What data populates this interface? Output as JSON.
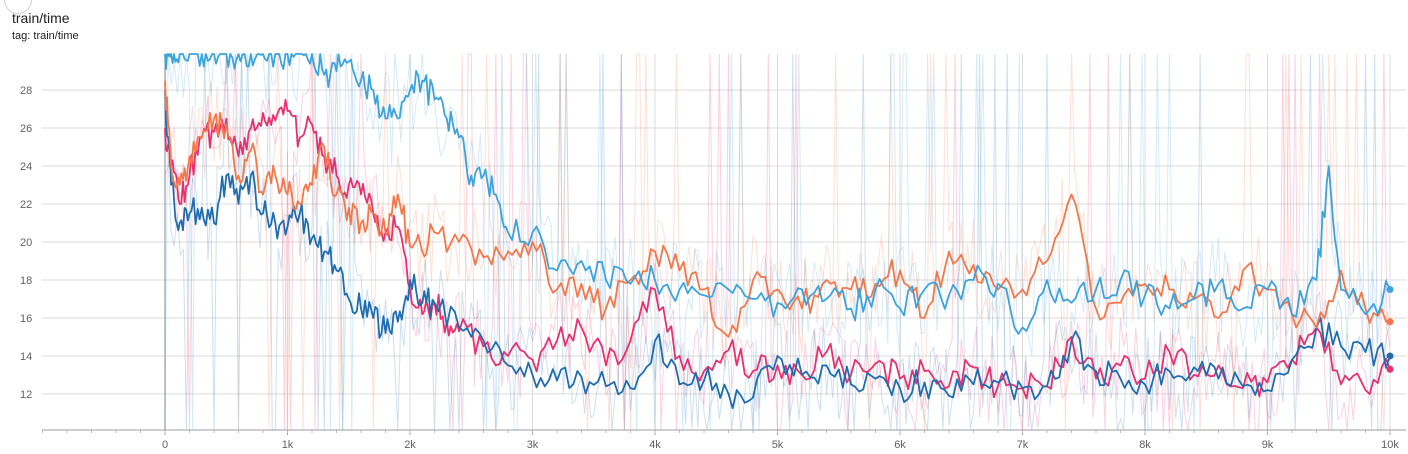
{
  "header": {
    "title": "train/time",
    "tag": "tag: train/time"
  },
  "chart_data": {
    "type": "line",
    "title": "train/time",
    "xlim": [
      0,
      10000
    ],
    "ylim": [
      10.1,
      29.9
    ],
    "grid": true,
    "x_ticks": [
      {
        "value": 0,
        "label": "0"
      },
      {
        "value": 1000,
        "label": "1k"
      },
      {
        "value": 2000,
        "label": "2k"
      },
      {
        "value": 3000,
        "label": "3k"
      },
      {
        "value": 4000,
        "label": "4k"
      },
      {
        "value": 5000,
        "label": "5k"
      },
      {
        "value": 6000,
        "label": "6k"
      },
      {
        "value": 7000,
        "label": "7k"
      },
      {
        "value": 8000,
        "label": "8k"
      },
      {
        "value": 9000,
        "label": "9k"
      },
      {
        "value": 10000,
        "label": "10k"
      }
    ],
    "y_ticks": [
      {
        "value": 12,
        "label": "12"
      },
      {
        "value": 14,
        "label": "14"
      },
      {
        "value": 16,
        "label": "16"
      },
      {
        "value": 18,
        "label": "18"
      },
      {
        "value": 20,
        "label": "20"
      },
      {
        "value": 22,
        "label": "22"
      },
      {
        "value": 24,
        "label": "24"
      },
      {
        "value": 26,
        "label": "26"
      },
      {
        "value": 28,
        "label": "28"
      }
    ],
    "series": [
      {
        "color": "#e8306f",
        "x": [
          0,
          50,
          120,
          200,
          300,
          400,
          500,
          600,
          700,
          800,
          900,
          1000,
          1100,
          1200,
          1300,
          1400,
          1500,
          1600,
          1700,
          1800,
          1900,
          2000,
          2100,
          2200,
          2300,
          2400,
          2600,
          2800,
          3000,
          3200,
          3400,
          3600,
          3800,
          4000,
          4200,
          4400,
          4600,
          4800,
          5000,
          5200,
          5400,
          5600,
          5800,
          6000,
          6200,
          6400,
          6600,
          6800,
          7000,
          7200,
          7400,
          7600,
          7800,
          8000,
          8200,
          8400,
          8600,
          8800,
          9000,
          9200,
          9400,
          9600,
          9800,
          10000
        ],
        "y": [
          26,
          24,
          22,
          23.5,
          25.5,
          25.8,
          26.5,
          24.5,
          26,
          26.8,
          26.4,
          26.9,
          25.5,
          26.2,
          24.5,
          23.5,
          23,
          22.5,
          21.5,
          20.5,
          20.8,
          17.5,
          16.2,
          16.8,
          15.8,
          15.3,
          14.5,
          14,
          13.8,
          14.8,
          15.5,
          13.5,
          14.8,
          17.5,
          14,
          13.2,
          14.3,
          13.2,
          13.5,
          13,
          14.2,
          13,
          13.6,
          12.8,
          13.2,
          12.4,
          13.4,
          12.4,
          12.3,
          12.4,
          15,
          12.8,
          13.5,
          12.8,
          14.2,
          13,
          13.5,
          12.3,
          12.6,
          13.8,
          15.5,
          12.5,
          12.2,
          13.3
        ]
      },
      {
        "color": "#1f6db0",
        "x": [
          0,
          50,
          120,
          200,
          300,
          400,
          500,
          600,
          700,
          800,
          900,
          1000,
          1100,
          1200,
          1300,
          1400,
          1500,
          1600,
          1700,
          1800,
          1900,
          2000,
          2100,
          2200,
          2400,
          2600,
          2800,
          3000,
          3200,
          3400,
          3600,
          3800,
          4000,
          4200,
          4400,
          4600,
          4800,
          5000,
          5200,
          5400,
          5600,
          5800,
          6000,
          6200,
          6400,
          6600,
          6800,
          7000,
          7200,
          7400,
          7600,
          7800,
          8000,
          8200,
          8400,
          8600,
          8800,
          9000,
          9200,
          9400,
          9600,
          9800,
          10000
        ],
        "y": [
          28,
          23,
          21,
          21.5,
          21.8,
          21,
          23.5,
          22,
          23.5,
          21.5,
          21,
          20.8,
          21.5,
          20.2,
          19.5,
          18.5,
          17,
          16.5,
          16,
          15.2,
          15.8,
          18,
          16.8,
          16.8,
          15.5,
          14.8,
          13.5,
          13,
          12.7,
          12.9,
          12.4,
          12.3,
          14.8,
          12.5,
          12.7,
          12,
          11.8,
          14,
          13,
          13.5,
          12.5,
          12.8,
          12.3,
          12.6,
          11.9,
          12.5,
          12.6,
          12.3,
          12.4,
          14.8,
          13.2,
          12.8,
          12.5,
          13.2,
          13.4,
          12.8,
          12.4,
          12.2,
          13.8,
          15.5,
          14.5,
          14.2,
          14
        ]
      },
      {
        "color": "#f2784b",
        "x": [
          0,
          50,
          120,
          200,
          300,
          400,
          500,
          600,
          700,
          800,
          900,
          1000,
          1100,
          1200,
          1300,
          1400,
          1500,
          1600,
          1700,
          1800,
          1900,
          2000,
          2100,
          2200,
          2400,
          2600,
          2800,
          3000,
          3200,
          3400,
          3600,
          3800,
          4000,
          4200,
          4400,
          4600,
          4800,
          5000,
          5200,
          5400,
          5600,
          5800,
          6000,
          6200,
          6400,
          6600,
          6800,
          7000,
          7200,
          7400,
          7600,
          7800,
          8000,
          8200,
          8400,
          8600,
          8800,
          9000,
          9200,
          9400,
          9600,
          9800,
          10000
        ],
        "y": [
          28.5,
          24,
          23,
          24.5,
          25.5,
          26.5,
          26.2,
          23.5,
          24.8,
          22.5,
          23.5,
          22.5,
          22,
          23,
          25,
          22.5,
          21.8,
          21,
          21.5,
          20.5,
          22.5,
          19.8,
          19.5,
          20.5,
          20,
          19.2,
          19.5,
          20,
          17.5,
          17.8,
          16.5,
          18,
          19.5,
          18.5,
          17.5,
          15,
          18,
          17.5,
          16.5,
          18,
          17.5,
          17.8,
          18.5,
          16,
          19.5,
          18.8,
          17.5,
          17.5,
          19,
          22.5,
          16.5,
          16.8,
          17.8,
          17.5,
          17,
          16,
          18.5,
          17.5,
          16.2,
          15.5,
          18.5,
          16.5,
          15.8
        ]
      },
      {
        "color": "#3ca3dc",
        "x": [
          0,
          50,
          120,
          200,
          300,
          400,
          500,
          600,
          700,
          800,
          900,
          1000,
          1100,
          1200,
          1300,
          1400,
          1500,
          1600,
          1700,
          1800,
          1900,
          2000,
          2100,
          2200,
          2300,
          2400,
          2500,
          2600,
          2700,
          2800,
          3000,
          3200,
          3400,
          3600,
          3800,
          4000,
          4200,
          4400,
          4600,
          4800,
          5000,
          5200,
          5400,
          5600,
          5800,
          6000,
          6200,
          6400,
          6600,
          6800,
          7000,
          7200,
          7400,
          7600,
          7800,
          8000,
          8200,
          8400,
          8600,
          8800,
          9000,
          9200,
          9400,
          9500,
          9600,
          9800,
          10000
        ],
        "y": [
          29.9,
          29.9,
          29.9,
          29.9,
          29.9,
          29.9,
          29.9,
          29.9,
          29.9,
          29.9,
          29.9,
          29.9,
          29.9,
          29.9,
          28.8,
          29,
          29.5,
          28.5,
          28,
          26.5,
          26.5,
          28,
          28.5,
          27.5,
          26.5,
          25.5,
          23.5,
          23.5,
          22.5,
          20.5,
          20.5,
          18.5,
          19,
          18,
          17.8,
          18,
          17.5,
          17.2,
          17.5,
          17,
          16.8,
          17.5,
          17,
          16.5,
          17.5,
          16.5,
          17.5,
          17.2,
          18,
          17.8,
          15.5,
          18,
          16.8,
          17.5,
          18,
          17.2,
          16.5,
          17,
          17.8,
          16.5,
          17.5,
          16.2,
          18,
          24,
          17.5,
          16.2,
          17.5
        ]
      }
    ]
  }
}
